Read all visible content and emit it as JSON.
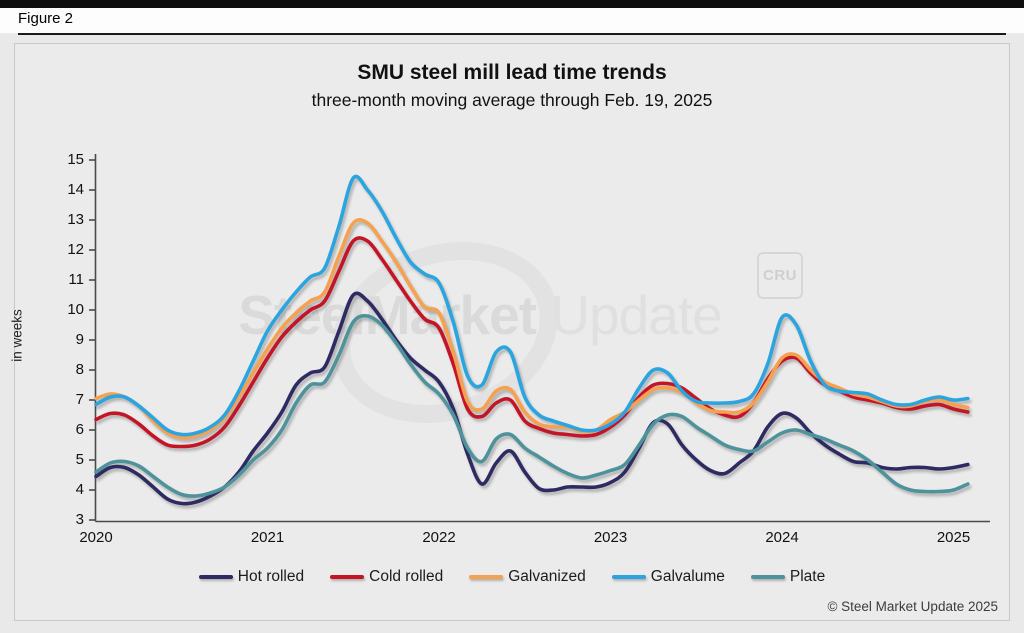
{
  "figure_label": "Figure 2",
  "header": {
    "title": "SMU steel mill lead time trends",
    "subtitle": "three-month moving average through Feb. 19, 2025"
  },
  "watermark": {
    "bold_part": "SteelMarket",
    "light_part": " Update",
    "cru_badge": "CRU"
  },
  "footer": {
    "copyright": "© Steel Market Update 2025"
  },
  "chart_data": {
    "type": "line",
    "title": "SMU steel mill lead time trends",
    "subtitle": "three-month moving average through Feb. 19, 2025",
    "xlabel": "",
    "ylabel": "in weeks",
    "ylim": [
      3,
      15
    ],
    "yticks": [
      3,
      4,
      5,
      6,
      7,
      8,
      9,
      10,
      11,
      12,
      13,
      14,
      15
    ],
    "xticks": [
      2020,
      2021,
      2022,
      2023,
      2024,
      2025
    ],
    "grid": false,
    "legend_position": "bottom",
    "x_start_year": 2020,
    "x_step": "monthly",
    "x_end_label": "Feb 2025",
    "series": [
      {
        "name": "Hot rolled",
        "color": "#2e2b63",
        "values": [
          4.45,
          4.75,
          4.75,
          4.5,
          4.1,
          3.7,
          3.55,
          3.6,
          3.8,
          4.1,
          4.6,
          5.3,
          5.9,
          6.6,
          7.5,
          7.9,
          8.1,
          9.3,
          10.5,
          10.3,
          9.7,
          9.0,
          8.4,
          8.0,
          7.6,
          6.7,
          5.2,
          4.2,
          4.9,
          5.3,
          4.6,
          4.05,
          4.0,
          4.1,
          4.1,
          4.1,
          4.25,
          4.6,
          5.4,
          6.25,
          6.2,
          5.5,
          5.0,
          4.65,
          4.55,
          4.9,
          5.3,
          6.1,
          6.55,
          6.4,
          5.9,
          5.5,
          5.2,
          4.95,
          4.9,
          4.75,
          4.7,
          4.75,
          4.75,
          4.7,
          4.75,
          4.85
        ]
      },
      {
        "name": "Cold rolled",
        "color": "#c41527",
        "values": [
          6.35,
          6.55,
          6.5,
          6.2,
          5.8,
          5.5,
          5.45,
          5.5,
          5.7,
          6.1,
          6.8,
          7.6,
          8.4,
          9.1,
          9.6,
          10.0,
          10.3,
          11.3,
          12.3,
          12.3,
          11.7,
          11.0,
          10.3,
          9.7,
          9.4,
          8.2,
          6.7,
          6.45,
          6.9,
          7.0,
          6.3,
          6.05,
          5.9,
          5.85,
          5.8,
          5.85,
          6.1,
          6.5,
          7.1,
          7.5,
          7.55,
          7.4,
          7.05,
          6.7,
          6.5,
          6.45,
          6.9,
          7.7,
          8.3,
          8.4,
          7.9,
          7.5,
          7.3,
          7.1,
          7.0,
          6.9,
          6.75,
          6.7,
          6.8,
          6.85,
          6.7,
          6.6
        ]
      },
      {
        "name": "Galvanized",
        "color": "#f5a14f",
        "values": [
          7.05,
          7.2,
          7.1,
          6.8,
          6.3,
          5.9,
          5.75,
          5.8,
          6.0,
          6.4,
          7.1,
          7.9,
          8.7,
          9.4,
          9.9,
          10.3,
          10.6,
          11.8,
          12.9,
          12.9,
          12.3,
          11.6,
          10.8,
          10.1,
          9.9,
          8.6,
          6.95,
          6.7,
          7.3,
          7.35,
          6.6,
          6.2,
          6.1,
          6.1,
          5.95,
          6.0,
          6.35,
          6.6,
          7.0,
          7.35,
          7.4,
          7.25,
          6.9,
          6.65,
          6.6,
          6.6,
          6.9,
          7.6,
          8.4,
          8.5,
          8.0,
          7.6,
          7.4,
          7.2,
          7.1,
          6.95,
          6.8,
          6.8,
          6.95,
          7.0,
          6.85,
          6.75
        ]
      },
      {
        "name": "Galvalume",
        "color": "#2ba4df",
        "values": [
          6.85,
          7.1,
          7.1,
          6.8,
          6.4,
          6.0,
          5.85,
          5.9,
          6.1,
          6.5,
          7.3,
          8.3,
          9.3,
          10.0,
          10.6,
          11.1,
          11.4,
          12.8,
          14.4,
          14.0,
          13.3,
          12.4,
          11.6,
          11.2,
          10.9,
          9.6,
          7.8,
          7.5,
          8.6,
          8.6,
          7.1,
          6.5,
          6.3,
          6.15,
          6.0,
          6.0,
          6.2,
          6.6,
          7.4,
          8.0,
          7.9,
          7.3,
          6.95,
          6.9,
          6.9,
          6.95,
          7.2,
          8.2,
          9.75,
          9.5,
          8.3,
          7.5,
          7.3,
          7.25,
          7.2,
          7.0,
          6.85,
          6.85,
          7.0,
          7.1,
          7.0,
          7.05
        ]
      },
      {
        "name": "Plate",
        "color": "#4e939b",
        "values": [
          4.6,
          4.9,
          4.95,
          4.8,
          4.45,
          4.1,
          3.85,
          3.8,
          3.9,
          4.1,
          4.5,
          5.0,
          5.4,
          6.0,
          6.9,
          7.5,
          7.6,
          8.5,
          9.6,
          9.8,
          9.5,
          8.9,
          8.2,
          7.6,
          7.2,
          6.5,
          5.4,
          4.95,
          5.7,
          5.85,
          5.4,
          5.1,
          4.8,
          4.55,
          4.4,
          4.5,
          4.65,
          4.85,
          5.5,
          6.2,
          6.5,
          6.45,
          6.1,
          5.8,
          5.5,
          5.35,
          5.3,
          5.6,
          5.9,
          6.0,
          5.85,
          5.7,
          5.5,
          5.3,
          5.0,
          4.6,
          4.2,
          4.0,
          3.95,
          3.95,
          4.0,
          4.2
        ]
      }
    ]
  }
}
